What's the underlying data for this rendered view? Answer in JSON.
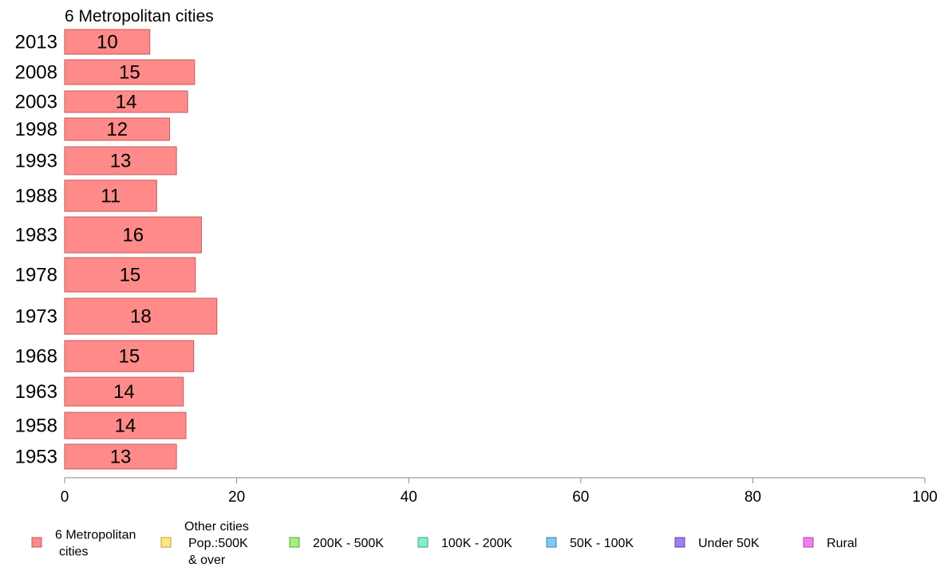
{
  "chart_data": {
    "type": "bar",
    "orientation": "horizontal",
    "title": "6 Metropolitan cities",
    "categories": [
      "2013",
      "2008",
      "2003",
      "1998",
      "1993",
      "1988",
      "1983",
      "1978",
      "1973",
      "1968",
      "1963",
      "1958",
      "1953"
    ],
    "series": [
      {
        "name": "6 Metropolitan cities",
        "values": [
          10,
          15,
          14,
          12,
          13,
          11,
          16,
          15,
          18,
          15,
          14,
          14,
          13
        ],
        "color": "#ff8a8a"
      }
    ],
    "display_values": [
      9.9,
      15.1,
      14.3,
      12.2,
      13.0,
      10.7,
      15.9,
      15.2,
      17.7,
      15.0,
      13.8,
      14.1,
      13.0
    ],
    "xlim": [
      0,
      100
    ],
    "xticks": [
      "0",
      "20",
      "40",
      "60",
      "80",
      "100"
    ],
    "xlabel": "",
    "ylabel": "",
    "grid": false,
    "legend": {
      "placement": "bottom",
      "items": [
        {
          "lines": [
            "6 Metropolitan",
            "cities"
          ],
          "color": "#ff8a8a",
          "border": "#c45a5a"
        },
        {
          "lines": [
            "Other cities",
            "Pop.:500K",
            "& over"
          ],
          "color": "#ffe680",
          "border": "#b9a040"
        },
        {
          "lines": [
            "200K - 500K"
          ],
          "color": "#a0f080",
          "border": "#60a040"
        },
        {
          "lines": [
            "100K - 200K"
          ],
          "color": "#80f0c8",
          "border": "#40a080"
        },
        {
          "lines": [
            "50K - 100K"
          ],
          "color": "#80c8f0",
          "border": "#4080b0"
        },
        {
          "lines": [
            "Under 50K"
          ],
          "color": "#a080f0",
          "border": "#6040b0"
        },
        {
          "lines": [
            "Rural"
          ],
          "color": "#f080f0",
          "border": "#b040b0"
        }
      ]
    }
  }
}
